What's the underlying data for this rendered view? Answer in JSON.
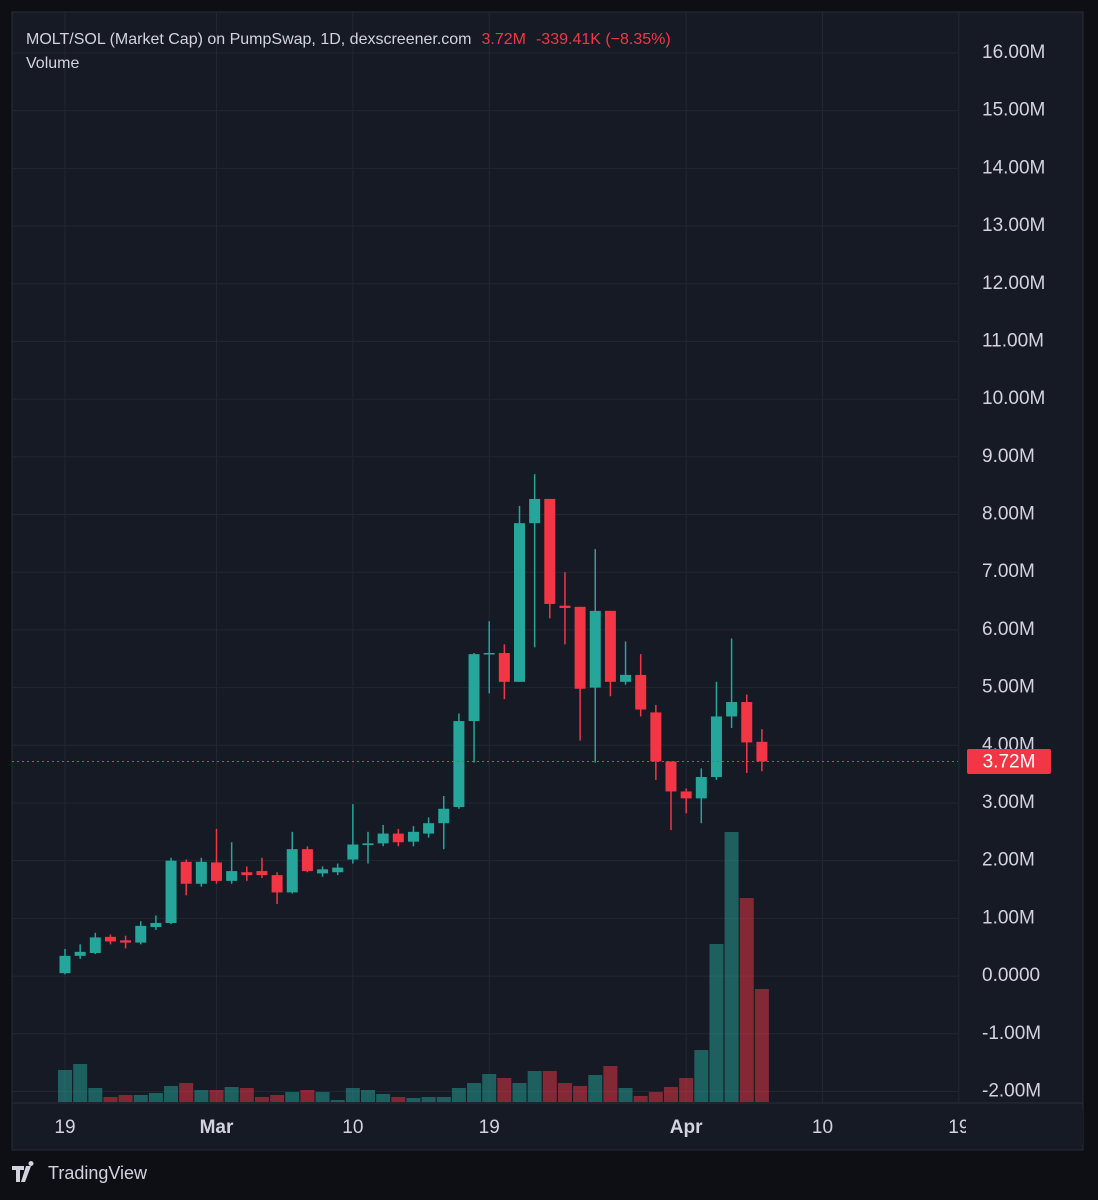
{
  "chart_data": {
    "type": "candlestick",
    "title": "MOLT/SOL (Market Cap) on PumpSwap, 1D, dexscreener.com",
    "last_price_text": "3.72M",
    "change_text": "-339.41K (−8.35%)",
    "volume_label": "Volume",
    "brand": "TradingView",
    "x": [
      "Feb 19",
      "Feb 20",
      "Feb 21",
      "Feb 22",
      "Feb 23",
      "Feb 24",
      "Feb 25",
      "Feb 26",
      "Feb 27",
      "Feb 28",
      "Mar 1",
      "Mar 2",
      "Mar 3",
      "Mar 4",
      "Mar 5",
      "Mar 6",
      "Mar 7",
      "Mar 8",
      "Mar 9",
      "Mar 10",
      "Mar 11",
      "Mar 12",
      "Mar 13",
      "Mar 14",
      "Mar 15",
      "Mar 16",
      "Mar 17",
      "Mar 18",
      "Mar 19",
      "Mar 20",
      "Mar 21",
      "Mar 22",
      "Mar 23",
      "Mar 24",
      "Mar 25",
      "Mar 26",
      "Mar 27",
      "Mar 28",
      "Mar 29",
      "Mar 30",
      "Mar 31",
      "Apr 1",
      "Apr 2",
      "Apr 3",
      "Apr 4",
      "Apr 5",
      "Apr 6"
    ],
    "open": [
      0.05,
      0.35,
      0.4,
      0.68,
      0.62,
      0.58,
      0.85,
      0.92,
      1.98,
      1.6,
      1.97,
      1.65,
      1.8,
      1.82,
      1.75,
      1.45,
      2.2,
      1.78,
      1.8,
      2.02,
      2.27,
      2.3,
      2.47,
      2.33,
      2.47,
      2.65,
      2.93,
      4.42,
      5.58,
      5.6,
      5.1,
      7.85,
      8.27,
      6.42,
      6.4,
      5.0,
      6.33,
      5.1,
      5.22,
      4.57,
      3.72,
      3.2,
      3.08,
      3.45,
      4.5,
      4.75,
      4.06
    ],
    "high": [
      0.47,
      0.55,
      0.75,
      0.72,
      0.7,
      0.95,
      1.05,
      2.05,
      2.02,
      2.05,
      2.55,
      2.32,
      1.9,
      2.05,
      1.8,
      2.5,
      2.25,
      1.9,
      1.95,
      2.98,
      2.5,
      2.62,
      2.55,
      2.6,
      2.75,
      3.12,
      4.55,
      5.6,
      6.15,
      5.75,
      8.15,
      8.7,
      8.27,
      7.0,
      6.4,
      7.4,
      6.33,
      5.8,
      5.58,
      4.7,
      3.72,
      3.25,
      3.6,
      5.1,
      5.85,
      4.88,
      4.28
    ],
    "low": [
      0.03,
      0.3,
      0.38,
      0.55,
      0.48,
      0.55,
      0.8,
      0.9,
      1.4,
      1.55,
      1.6,
      1.6,
      1.65,
      1.7,
      1.25,
      1.43,
      1.8,
      1.72,
      1.75,
      1.95,
      1.95,
      2.25,
      2.25,
      2.25,
      2.4,
      2.2,
      2.9,
      3.7,
      4.9,
      4.8,
      5.1,
      5.7,
      6.2,
      5.75,
      4.08,
      3.7,
      4.85,
      5.05,
      4.5,
      3.4,
      2.53,
      2.82,
      2.65,
      3.4,
      4.3,
      3.52,
      3.55
    ],
    "close": [
      0.35,
      0.42,
      0.67,
      0.6,
      0.58,
      0.87,
      0.92,
      2.0,
      1.6,
      1.98,
      1.65,
      1.82,
      1.75,
      1.75,
      1.45,
      2.2,
      1.82,
      1.85,
      1.88,
      2.28,
      2.3,
      2.47,
      2.32,
      2.5,
      2.65,
      2.9,
      4.42,
      5.58,
      5.6,
      5.1,
      7.85,
      8.27,
      6.45,
      6.38,
      4.98,
      6.33,
      5.1,
      5.22,
      4.62,
      3.72,
      3.2,
      3.08,
      3.45,
      4.5,
      4.75,
      4.05,
      3.72
    ],
    "volume": [
      32,
      38,
      14,
      5,
      7,
      7,
      9,
      16,
      19,
      12,
      12,
      15,
      14,
      5,
      7,
      10,
      12,
      10,
      2,
      14,
      12,
      8,
      5,
      4,
      5,
      5,
      14,
      19,
      28,
      24,
      19,
      31,
      31,
      19,
      16,
      27,
      36,
      14,
      6,
      10,
      15,
      24,
      52,
      158,
      270,
      204,
      113
    ],
    "up_color": "#26a69a",
    "down_color": "#f23645",
    "last_price": {
      "value": 3.72,
      "label": "3.72M"
    },
    "ylim": [
      -2.2,
      16.71
    ],
    "yticks": [
      {
        "value": 16,
        "label": "16.00M"
      },
      {
        "value": 15,
        "label": "15.00M"
      },
      {
        "value": 14,
        "label": "14.00M"
      },
      {
        "value": 13,
        "label": "13.00M"
      },
      {
        "value": 12,
        "label": "12.00M"
      },
      {
        "value": 11,
        "label": "11.00M"
      },
      {
        "value": 10,
        "label": "10.00M"
      },
      {
        "value": 9,
        "label": "9.00M"
      },
      {
        "value": 8,
        "label": "8.00M"
      },
      {
        "value": 7,
        "label": "7.00M"
      },
      {
        "value": 6,
        "label": "6.00M"
      },
      {
        "value": 5,
        "label": "5.00M"
      },
      {
        "value": 4,
        "label": "4.00M"
      },
      {
        "value": 3,
        "label": "3.00M"
      },
      {
        "value": 2,
        "label": "2.00M"
      },
      {
        "value": 1,
        "label": "1.00M"
      },
      {
        "value": 0,
        "label": "0.0000"
      },
      {
        "value": -1,
        "label": "-1.00M"
      },
      {
        "value": -2,
        "label": "-2.00M"
      }
    ],
    "xticks": [
      {
        "value": "Feb 19",
        "label": "19"
      },
      {
        "value": "Mar 1",
        "label": "Mar"
      },
      {
        "value": "Mar 10",
        "label": "10"
      },
      {
        "value": "Mar 19",
        "label": "19"
      },
      {
        "value": "Apr 1",
        "label": "Apr"
      },
      {
        "value": "Apr 10",
        "label": "10"
      },
      {
        "value": "Apr 19",
        "label": "19"
      }
    ],
    "grid": true
  }
}
